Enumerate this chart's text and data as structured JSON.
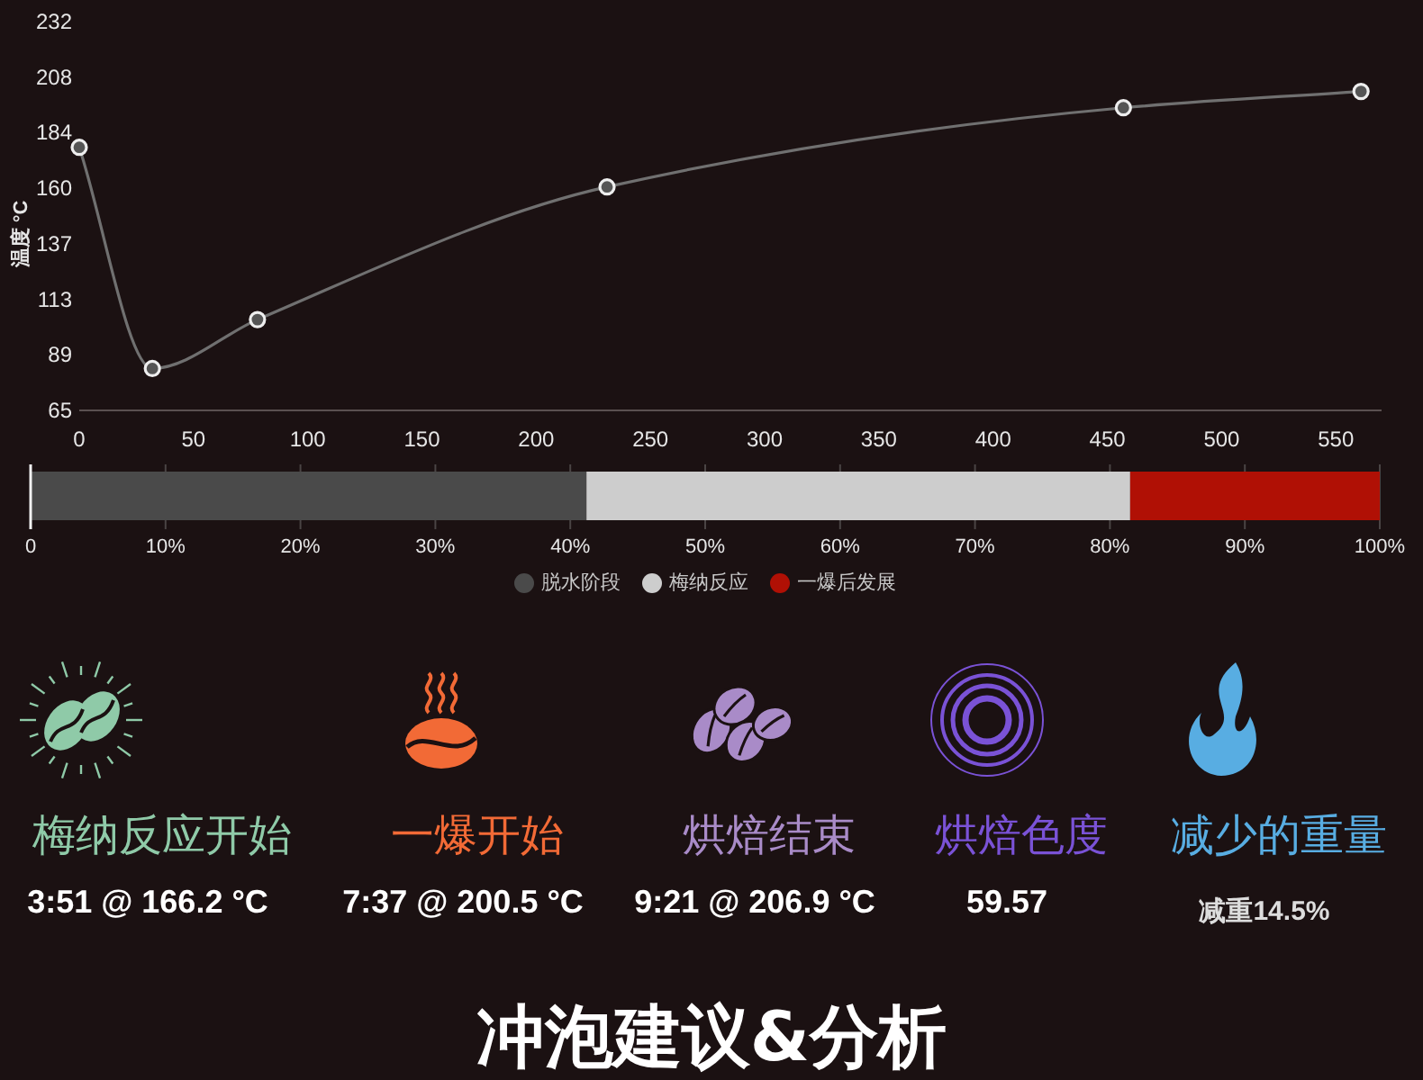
{
  "chart_data": [
    {
      "type": "line",
      "ylabel": "温度 °C",
      "x": [
        0,
        32,
        78,
        231,
        457,
        561
      ],
      "series": [
        {
          "color": "#707070",
          "values": [
            178,
            83,
            104,
            161,
            195,
            202
          ]
        }
      ],
      "xlim": [
        0,
        570
      ],
      "ylim": [
        65,
        232
      ],
      "xticks": [
        0,
        50,
        100,
        150,
        200,
        250,
        300,
        350,
        400,
        450,
        500,
        550
      ],
      "yticks": [
        65,
        {
          "value": 88.86,
          "label": "89"
        },
        {
          "value": 112.71,
          "label": "113"
        },
        {
          "value": 136.57,
          "label": "137"
        },
        {
          "value": 160.43,
          "label": "160"
        },
        {
          "value": 184.29,
          "label": "184"
        },
        {
          "value": 208.14,
          "label": "208"
        },
        232
      ],
      "marker": "circle",
      "line_style": "solid"
    },
    {
      "type": "bar",
      "orientation": "horizontal",
      "stacked": true,
      "categories": [
        null
      ],
      "series": [
        {
          "name": "脱水阶段",
          "color": "#4a4a4a",
          "values": [
            41.2
          ]
        },
        {
          "name": "梅纳反应",
          "color": "#cdcdcd",
          "values": [
            40.3
          ]
        },
        {
          "name": "一爆后发展",
          "color": "#b01005",
          "values": [
            18.5
          ]
        }
      ],
      "xlim": [
        0,
        100
      ],
      "xticks": [
        0,
        {
          "value": 10,
          "label": "10%"
        },
        {
          "value": 20,
          "label": "20%"
        },
        {
          "value": 30,
          "label": "30%"
        },
        {
          "value": 40,
          "label": "40%"
        },
        {
          "value": 50,
          "label": "50%"
        },
        {
          "value": 60,
          "label": "60%"
        },
        {
          "value": 70,
          "label": "70%"
        },
        {
          "value": 80,
          "label": "80%"
        },
        {
          "value": 90,
          "label": "90%"
        },
        {
          "value": 100,
          "label": "100%"
        }
      ],
      "grid": "x",
      "legend": "bottom"
    },
    {
      "type": "other",
      "title": "冲泡建议&分析",
      "categories": [
        "梅纳反应开始",
        "一爆开始",
        "烘焙结束",
        "烘焙色度",
        "减少的重量"
      ],
      "colors": [
        "#8fcaa8",
        "#f26a36",
        "#a98bc8",
        "#7a52d6",
        "#58ade2"
      ],
      "annotations": [
        "3:51 @ 166.2 °C",
        "7:37 @ 200.5 °C",
        "9:21 @ 206.9 °C",
        "59.57",
        "减重14.5%"
      ]
    }
  ]
}
